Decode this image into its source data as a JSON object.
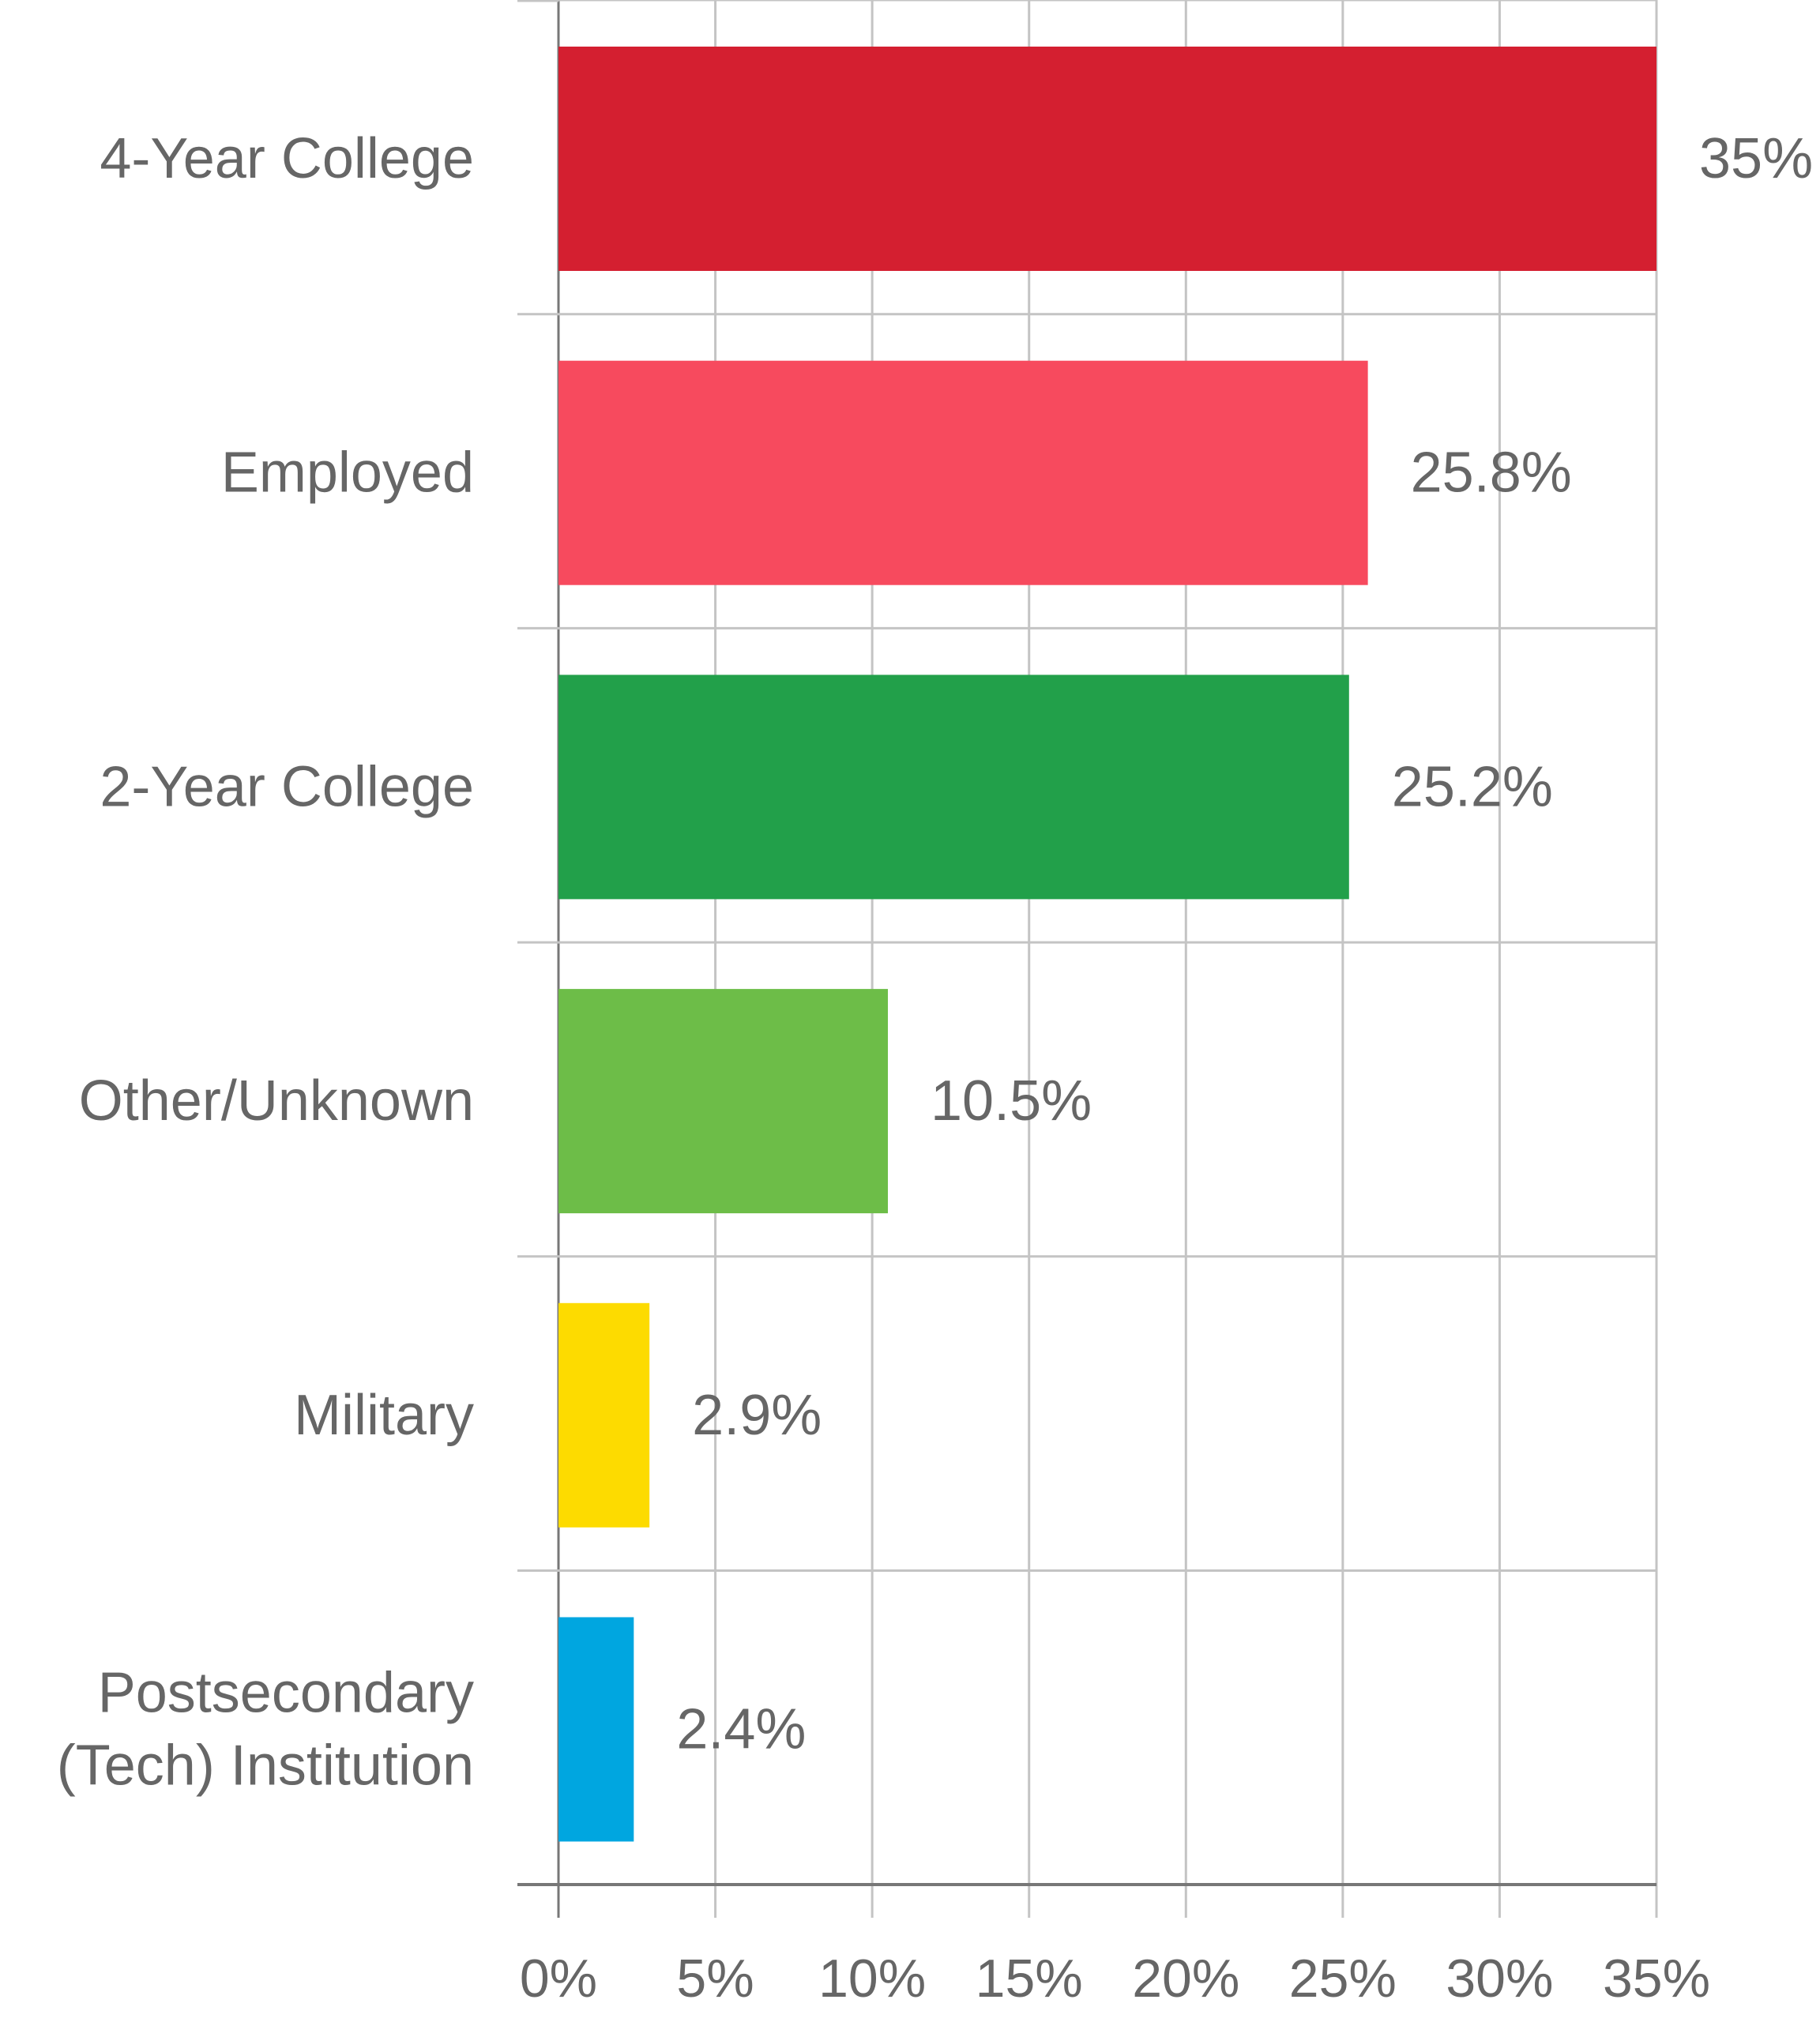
{
  "chart_data": {
    "type": "bar",
    "orientation": "horizontal",
    "categories": [
      "4-Year College",
      "Employed",
      "2-Year College",
      "Other/Unknown",
      "Military",
      "Postsecondary (Tech) Institution"
    ],
    "category_lines": [
      [
        "4-Year College"
      ],
      [
        "Employed"
      ],
      [
        "2-Year College"
      ],
      [
        "Other/Unknown"
      ],
      [
        "Military"
      ],
      [
        "Postsecondary",
        "(Tech) Institution"
      ]
    ],
    "values": [
      35,
      25.8,
      25.2,
      10.5,
      2.9,
      2.4
    ],
    "value_labels": [
      "35%",
      "25.8%",
      "25.2%",
      "10.5%",
      "2.9%",
      "2.4%"
    ],
    "colors": [
      "#D41F30",
      "#F74A5E",
      "#22A04A",
      "#6DBD48",
      "#FDDB00",
      "#00A6E0"
    ],
    "xticks": [
      0,
      5,
      10,
      15,
      20,
      25,
      30,
      35
    ],
    "xtick_labels": [
      "0%",
      "5%",
      "10%",
      "15%",
      "20%",
      "25%",
      "30%",
      "35%"
    ],
    "xlim": [
      0,
      35
    ],
    "grid": true,
    "legend": "none",
    "title": "",
    "xlabel": "",
    "ylabel": ""
  }
}
